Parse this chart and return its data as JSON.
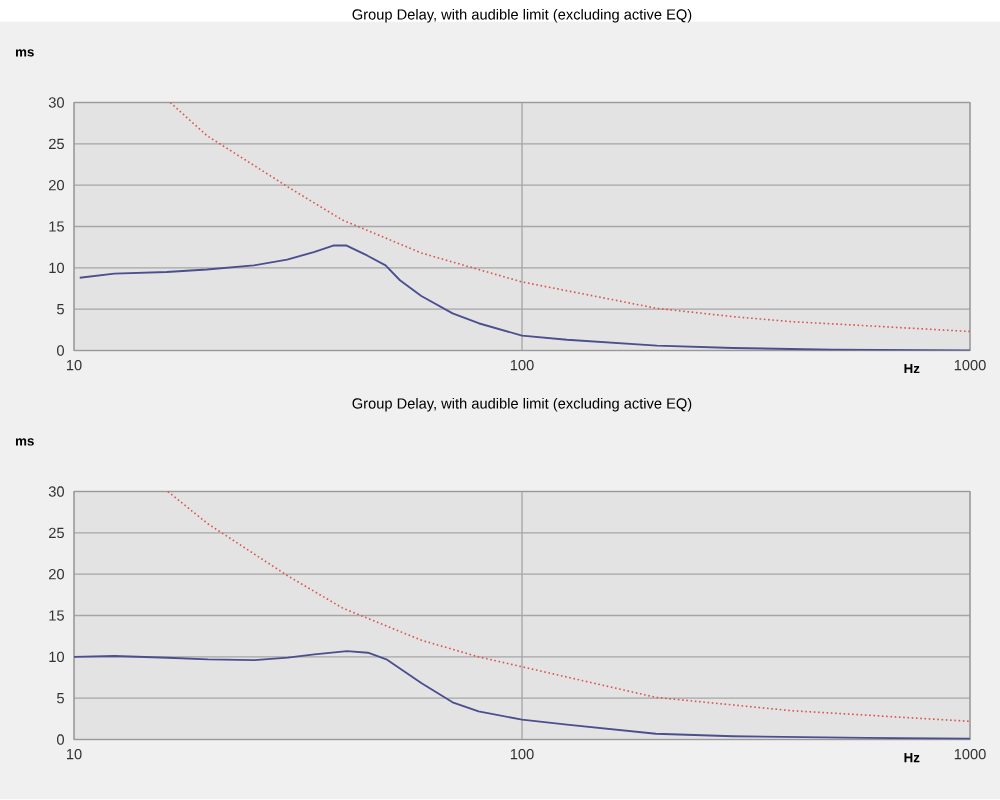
{
  "chart_data": [
    {
      "type": "line",
      "title": "Group Delay, with audible limit (excluding active EQ)",
      "xlabel": "Hz",
      "ylabel": "ms",
      "log": "x",
      "grid": true,
      "marker": "none",
      "xlim": [
        10,
        1000
      ],
      "xticks": [
        10,
        100,
        1000
      ],
      "ylim": [
        0,
        30
      ],
      "yticks": [
        0,
        5,
        10,
        15,
        20,
        25,
        30
      ],
      "series": [
        {
          "color": "#4b4f8f",
          "line_style": "solid",
          "x": [
            10.3,
            12.3,
            16.1,
            19.8,
            25.2,
            29.9,
            34.3,
            37.9,
            40.6,
            45.1,
            49.6,
            53.4,
            59.6,
            70,
            80,
            100,
            126,
            200,
            296,
            494,
            1000
          ],
          "values": [
            8.8,
            9.3,
            9.5,
            9.8,
            10.3,
            11.0,
            11.9,
            12.7,
            12.7,
            11.5,
            10.3,
            8.5,
            6.6,
            4.5,
            3.3,
            1.8,
            1.3,
            0.6,
            0.3,
            0.1,
            0.0
          ]
        },
        {
          "color": "#d9534f",
          "line_style": "dotted",
          "x": [
            16.4,
            19.8,
            30,
            39.7,
            59.6,
            80,
            100,
            200,
            296,
            397,
            587,
            1000
          ],
          "values": [
            30,
            26.0,
            19.8,
            15.8,
            11.8,
            9.8,
            8.3,
            5.1,
            4.1,
            3.5,
            3.0,
            2.3
          ]
        }
      ]
    },
    {
      "type": "line",
      "title": "Group Delay, with audible limit (excluding active EQ)",
      "xlabel": "Hz",
      "ylabel": "ms",
      "log": "x",
      "grid": true,
      "marker": "none",
      "xlim": [
        10,
        1000
      ],
      "xticks": [
        10,
        100,
        1000
      ],
      "ylim": [
        0,
        30
      ],
      "yticks": [
        0,
        5,
        10,
        15,
        20,
        25,
        30
      ],
      "series": [
        {
          "color": "#4b4f8f",
          "line_style": "solid",
          "x": [
            10,
            12.3,
            16.2,
            19.9,
            25.3,
            30,
            34.4,
            40.7,
            45.3,
            49.8,
            59.7,
            70,
            80,
            100,
            126,
            199,
            295,
            587,
            1000
          ],
          "values": [
            10.0,
            10.1,
            9.9,
            9.7,
            9.6,
            9.9,
            10.3,
            10.7,
            10.5,
            9.7,
            6.8,
            4.5,
            3.4,
            2.4,
            1.8,
            0.7,
            0.4,
            0.2,
            0.1
          ]
        },
        {
          "color": "#d9534f",
          "line_style": "dotted",
          "x": [
            16.2,
            19.9,
            30,
            39.8,
            59.7,
            80,
            100,
            199,
            397,
            1000
          ],
          "values": [
            30,
            26.1,
            19.8,
            15.9,
            12.0,
            10.0,
            8.8,
            5.1,
            3.5,
            2.2
          ]
        }
      ]
    }
  ]
}
